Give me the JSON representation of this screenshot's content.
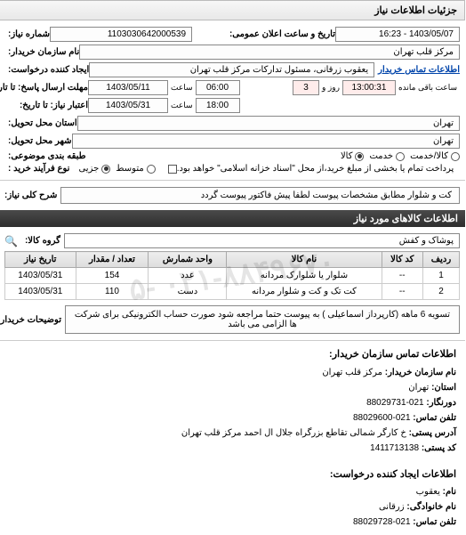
{
  "tab_title": "جزئیات اطلاعات نیاز",
  "header": {
    "order_no_label": "شماره نیاز:",
    "order_no": "1103030642000539",
    "pub_date_label": "تاریخ و ساعت اعلان عمومی:",
    "pub_date": "1403/05/07 - 16:23",
    "buyer_name_label": "نام سازمان خریدار:",
    "buyer_name": "مرکز قلب تهران",
    "requester_label": "ایجاد کننده درخواست:",
    "requester": "یعقوب زرقانی، مسئول تدارکات مرکز قلب تهران",
    "buyer_contact_link": "اطلاعات تماس خریدار",
    "deadline_label": "مهلت ارسال پاسخ: تا تاریخ:",
    "deadline_date": "1403/05/11",
    "time_word": "ساعت",
    "deadline_time": "06:00",
    "day_word": "روز و",
    "days_left": "3",
    "remaining_time": "13:00:31",
    "remaining_label": "ساعت باقی مانده",
    "validity_label": "اعتبار نیاز: تا تاریخ:",
    "validity_date": "1403/05/31",
    "validity_time": "18:00",
    "state_label": "استان محل تحویل:",
    "state": "تهران",
    "city_label": "شهر محل تحویل:",
    "city": "تهران",
    "class_label": "طبقه بندی موضوعی:",
    "class_opts": {
      "goods": "کالا",
      "service": "خدمت",
      "both": "کالا/خدمت"
    },
    "budget_label": "نوع فرآیند خرید :",
    "budget_opts": {
      "low": "جزیی",
      "mid": "متوسط"
    },
    "budget_note": "پرداخت تمام یا بخشی از مبلغ خرید،از محل \"اسناد خزانه اسلامی\" خواهد بود."
  },
  "need": {
    "title_label": "شرح کلی نیاز:",
    "title": "کت و شلوار مطابق مشخصات پیوست لطفا پیش فاکتور پیوست گردد"
  },
  "items_header": "اطلاعات کالاهای مورد نیاز",
  "group_label": "گروه کالا:",
  "group_value": "پوشاک و کفش",
  "table": {
    "columns": [
      "ردیف",
      "کد کالا",
      "نام کالا",
      "واحد شمارش",
      "تعداد / مقدار",
      "تاریخ نیاز"
    ],
    "rows": [
      [
        "1",
        "--",
        "شلوار یا شلوارک مردانه",
        "عدد",
        "154",
        "1403/05/31"
      ],
      [
        "2",
        "--",
        "کت تک و کت و شلوار مردانه",
        "دست",
        "110",
        "1403/05/31"
      ]
    ]
  },
  "buyer_note_label": "توضیحات خریدار:",
  "buyer_note": "تسویه 6 ماهه (کارپرداز اسماعیلی ) به پیوست حتما مراجعه شود صورت حساب الکترونیکی برای شرکت ها الزامی می باشد",
  "watermark": "۰۲۱-۸۸۴۹۶۷۰ -۵",
  "contact_buyer": {
    "header": "اطلاعات تماس سازمان خریدار:",
    "org_label": "نام سازمان خریدار:",
    "org": "مرکز قلب تهران",
    "province_label": "استان:",
    "province": "تهران",
    "fax_label": "دورنگار:",
    "fax": "021-88029731",
    "phone_label": "تلفن تماس:",
    "phone": "021-88029600",
    "addr_label": "آدرس پستی:",
    "addr": "خ کارگر شمالی تقاطع بزرگراه جلال ال احمد مرکز قلب تهران",
    "zip_label": "کد پستی:",
    "zip": "1411713138"
  },
  "contact_requester": {
    "header": "اطلاعات ایجاد کننده درخواست:",
    "fname_label": "نام:",
    "fname": "یعقوب",
    "lname_label": "نام خانوادگی:",
    "lname": "زرقانی",
    "phone_label": "تلفن تماس:",
    "phone": "021-88029728"
  }
}
